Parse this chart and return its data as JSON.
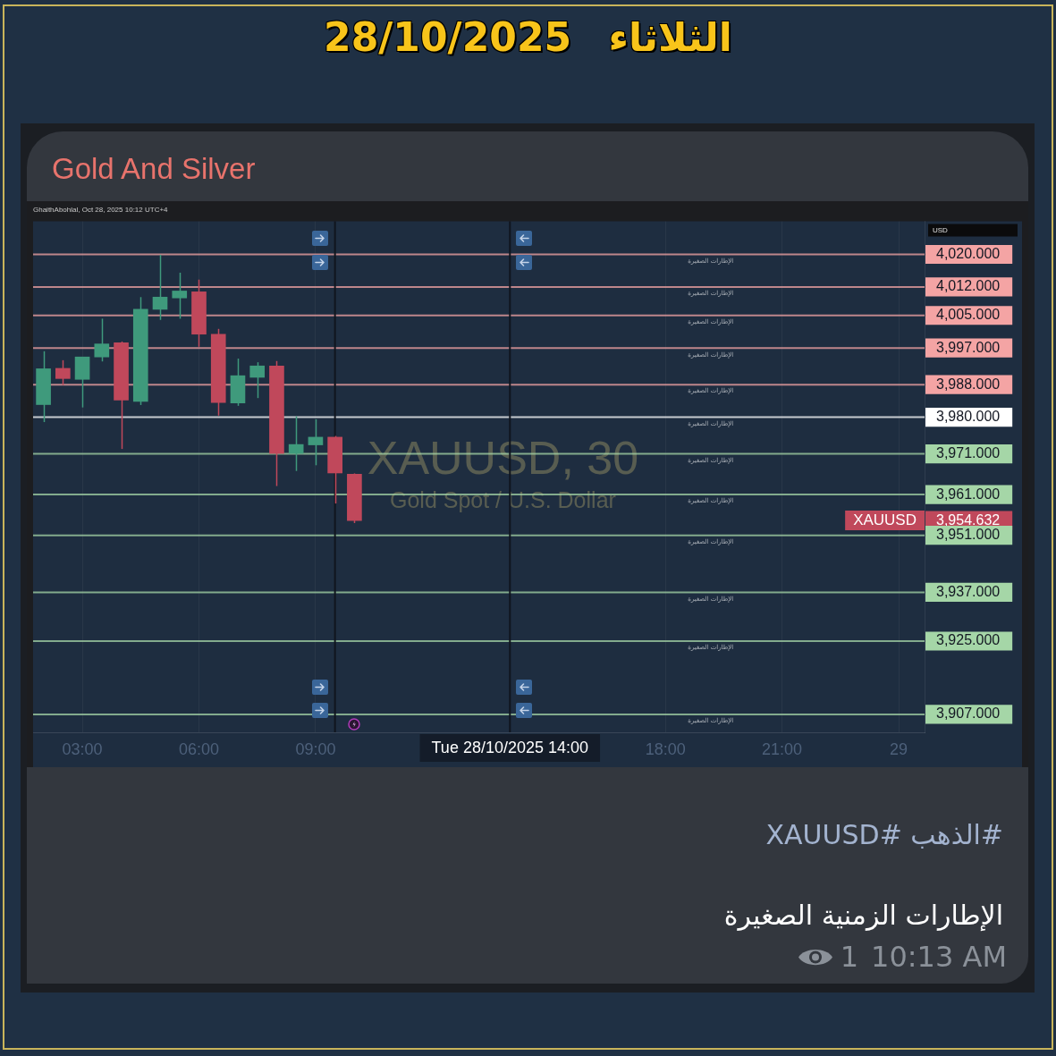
{
  "chart_data": {
    "type": "candlestick",
    "title": "الثلاثاء 28/10/2025",
    "subtitle": "Gold And Silver",
    "ylabel": "USD",
    "x": [
      "2025-10-28T02:00",
      "2025-10-28T02:30",
      "2025-10-28T03:00",
      "2025-10-28T03:30",
      "2025-10-28T04:00",
      "2025-10-28T04:30",
      "2025-10-28T05:00",
      "2025-10-28T05:30",
      "2025-10-28T06:00",
      "2025-10-28T06:30",
      "2025-10-28T07:00",
      "2025-10-28T07:30",
      "2025-10-28T08:00",
      "2025-10-28T08:30",
      "2025-10-28T09:00",
      "2025-10-28T09:30",
      "2025-10-28T10:00"
    ],
    "ohlc": [
      [
        3983.1,
        3996.2,
        3978.8,
        3991.9
      ],
      [
        3992.0,
        3994.0,
        3987.9,
        3989.5
      ],
      [
        3989.3,
        3994.8,
        3982.4,
        3994.8
      ],
      [
        3994.8,
        4004.2,
        3993.7,
        3998.0
      ],
      [
        3998.3,
        3998.6,
        3972.2,
        3984.2
      ],
      [
        3983.9,
        4009.5,
        3983.0,
        4006.5
      ],
      [
        4006.5,
        4019.9,
        4003.9,
        4009.5
      ],
      [
        4009.3,
        4015.5,
        4004.2,
        4011.0
      ],
      [
        4010.8,
        4013.8,
        3997.3,
        4000.4
      ],
      [
        4000.4,
        4001.7,
        3980.4,
        3983.6
      ],
      [
        3983.5,
        3994.4,
        3982.8,
        3990.2
      ],
      [
        3989.8,
        3993.5,
        3984.7,
        3992.6
      ],
      [
        3992.6,
        3993.8,
        3963.1,
        3971.1
      ],
      [
        3971.1,
        3980.2,
        3966.8,
        3973.3
      ],
      [
        3973.2,
        3979.5,
        3968.2,
        3975.1
      ],
      [
        3975.1,
        3975.4,
        3958.8,
        3966.3
      ],
      [
        3966.0,
        3966.2,
        3954.0,
        3954.632
      ]
    ],
    "colors": [
      "#3f9a7c",
      "#c0485b",
      "#3f9a7c",
      "#3f9a7c",
      "#c0485b",
      "#3f9a7c",
      "#3f9a7c",
      "#3f9a7c",
      "#c0485b",
      "#c0485b",
      "#3f9a7c",
      "#3f9a7c",
      "#c0485b",
      "#3f9a7c",
      "#3f9a7c",
      "#c0485b",
      "#c0485b"
    ],
    "xlim": [
      "2025-10-28T01:44",
      "2025-10-29T00:40"
    ],
    "xticks": [
      {
        "value": "2025-10-28T03:00",
        "label": "03:00"
      },
      {
        "value": "2025-10-28T06:00",
        "label": "06:00"
      },
      {
        "value": "2025-10-28T09:00",
        "label": "09:00"
      },
      {
        "value": "2025-10-28T18:00",
        "label": "18:00"
      },
      {
        "value": "2025-10-28T21:00",
        "label": "21:00"
      },
      {
        "value": "2025-10-29",
        "label": "29"
      }
    ],
    "ylim": [
      3902.6,
      4028.1
    ],
    "yticks": [
      {
        "value": 4020,
        "label": "4,020.000"
      },
      {
        "value": 4012,
        "label": "4,012.000"
      },
      {
        "value": 4005,
        "label": "4,005.000"
      },
      {
        "value": 3997,
        "label": "3,997.000"
      },
      {
        "value": 3988,
        "label": "3,988.000"
      },
      {
        "value": 3980,
        "label": "3,980.000"
      },
      {
        "value": 3971,
        "label": "3,971.000"
      },
      {
        "value": 3961,
        "label": "3,961.000"
      },
      {
        "value": 3954.632,
        "label": "3,954.632"
      },
      {
        "value": 3951,
        "label": "3,951.000"
      },
      {
        "value": 3937,
        "label": "3,937.000"
      },
      {
        "value": 3925,
        "label": "3,925.000"
      },
      {
        "value": 3907,
        "label": "3,907.000"
      }
    ],
    "grid": "x",
    "ref_lines": [
      {
        "axis": "y",
        "value": 4020,
        "label": "الإطارات الصغيرة",
        "color": "#f4a4a4"
      },
      {
        "axis": "y",
        "value": 4012,
        "label": "الإطارات الصغيرة",
        "color": "#f4a4a4"
      },
      {
        "axis": "y",
        "value": 4005,
        "label": "الإطارات الصغيرة",
        "color": "#f4a4a4"
      },
      {
        "axis": "y",
        "value": 3997,
        "label": "الإطارات الصغيرة",
        "color": "#f4a4a4"
      },
      {
        "axis": "y",
        "value": 3988,
        "label": "الإطارات الصغيرة",
        "color": "#f4a4a4"
      },
      {
        "axis": "y",
        "value": 3980,
        "label": "الإطارات الصغيرة",
        "color": "#ffffff"
      },
      {
        "axis": "y",
        "value": 3971,
        "label": "الإطارات الصغيرة",
        "color": "#a5d6a7"
      },
      {
        "axis": "y",
        "value": 3961,
        "label": "الإطارات الصغيرة",
        "color": "#a5d6a7"
      },
      {
        "axis": "y",
        "value": 3951,
        "label": "الإطارات الصغيرة",
        "color": "#a5d6a7"
      },
      {
        "axis": "y",
        "value": 3937,
        "label": "الإطارات الصغيرة",
        "color": "#a5d6a7"
      },
      {
        "axis": "y",
        "value": 3925,
        "label": "الإطارات الصغيرة",
        "color": "#a5d6a7"
      },
      {
        "axis": "y",
        "value": 3907,
        "label": "الإطارات الصغيرة",
        "color": "#a5d6a7"
      },
      {
        "axis": "x",
        "value": "2025-10-28T09:30",
        "color": "#10151e"
      },
      {
        "axis": "x",
        "value": "2025-10-28T14:00",
        "label": "Tue 28/10/2025 14:00",
        "color": "#10151e"
      }
    ],
    "annotations": [
      "GhaithAbohlal, Oct 28, 2025 10:12 UTC+4",
      "XAUUSD, 30",
      "Gold Spot / U.S. Dollar",
      "#الذهب #XAUUSD",
      "الإطارات الزمنية الصغيرة",
      "1",
      "10:13 AM",
      "XAUUSD"
    ]
  }
}
